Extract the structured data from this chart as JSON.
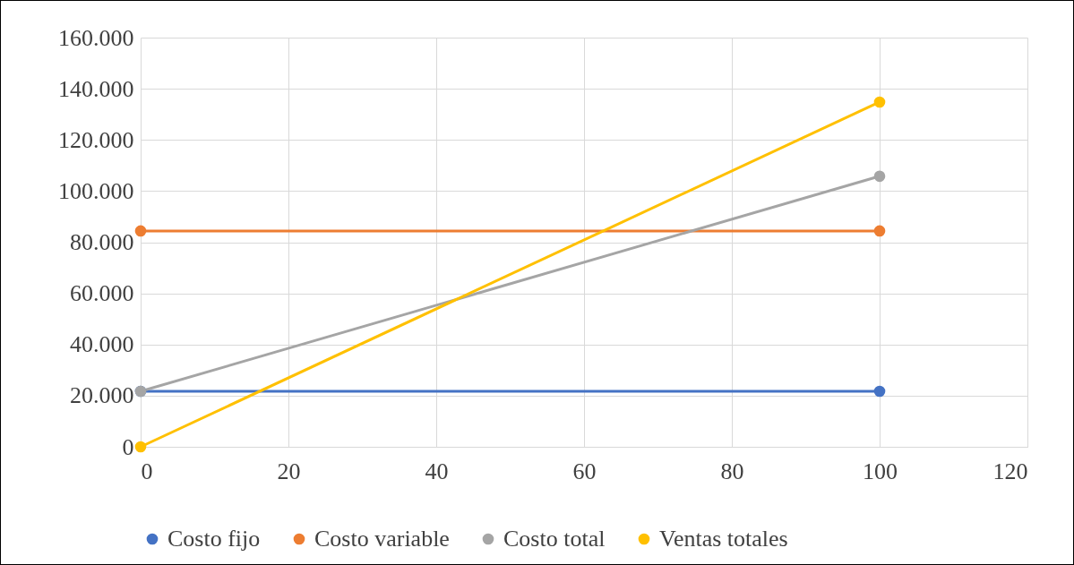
{
  "chart_data": {
    "type": "line",
    "x": [
      0,
      100
    ],
    "series": [
      {
        "name": "Costo fijo",
        "color": "#4472c4",
        "values": [
          21700,
          21700
        ]
      },
      {
        "name": "Costo variable",
        "color": "#ed7d31",
        "values": [
          84400,
          84400
        ]
      },
      {
        "name": "Costo total",
        "color": "#a5a5a5",
        "values": [
          21700,
          105800
        ]
      },
      {
        "name": "Ventas totales",
        "color": "#ffc000",
        "values": [
          0,
          134800
        ]
      }
    ],
    "xlim": [
      0,
      120
    ],
    "xticks": [
      0,
      20,
      40,
      60,
      80,
      100,
      120
    ],
    "ylim": [
      0,
      160000
    ],
    "yticks": [
      0,
      {
        "value": 20000,
        "label": "20.000"
      },
      {
        "value": 40000,
        "label": "40.000"
      },
      {
        "value": 60000,
        "label": "60.000"
      },
      {
        "value": 80000,
        "label": "80.000"
      },
      {
        "value": 100000,
        "label": "100.000"
      },
      {
        "value": 120000,
        "label": "120.000"
      },
      {
        "value": 140000,
        "label": "140.000"
      },
      {
        "value": 160000,
        "label": "160.000"
      }
    ],
    "grid": true,
    "legend": "bottom",
    "marker": "circle"
  }
}
